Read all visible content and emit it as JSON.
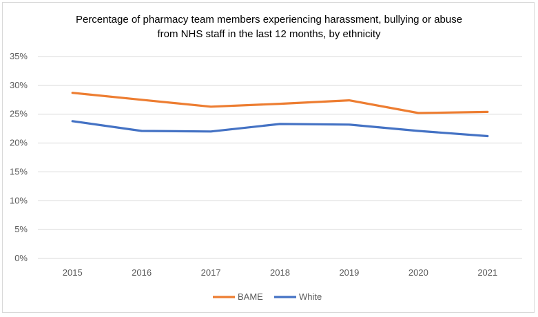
{
  "chart_data": {
    "type": "line",
    "title_line1": "Percentage of pharmacy team members experiencing harassment, bullying or abuse",
    "title_line2": "from NHS staff in the last 12 months, by ethnicity",
    "categories": [
      "2015",
      "2016",
      "2017",
      "2018",
      "2019",
      "2020",
      "2021"
    ],
    "ylim": [
      0,
      35
    ],
    "yticks": [
      "0%",
      "5%",
      "10%",
      "15%",
      "20%",
      "25%",
      "30%",
      "35%"
    ],
    "ytick_values": [
      0,
      5,
      10,
      15,
      20,
      25,
      30,
      35
    ],
    "grid": true,
    "legend": "bottom",
    "series": [
      {
        "name": "BAME",
        "color": "#ED7D31",
        "values": [
          28.7,
          27.5,
          26.3,
          26.8,
          27.4,
          25.2,
          25.4
        ]
      },
      {
        "name": "White",
        "color": "#4472C4",
        "values": [
          23.8,
          22.1,
          22.0,
          23.3,
          23.2,
          22.1,
          21.2
        ]
      }
    ]
  }
}
